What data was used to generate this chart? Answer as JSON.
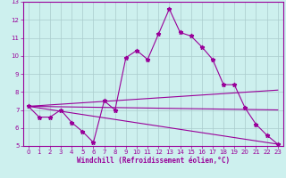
{
  "xlabel": "Windchill (Refroidissement éolien,°C)",
  "xlim": [
    -0.5,
    23.5
  ],
  "ylim": [
    5,
    13
  ],
  "xticks": [
    0,
    1,
    2,
    3,
    4,
    5,
    6,
    7,
    8,
    9,
    10,
    11,
    12,
    13,
    14,
    15,
    16,
    17,
    18,
    19,
    20,
    21,
    22,
    23
  ],
  "yticks": [
    5,
    6,
    7,
    8,
    9,
    10,
    11,
    12,
    13
  ],
  "bg_color": "#cdf0ee",
  "line_color": "#990099",
  "grid_color": "#aacccc",
  "lines": [
    {
      "x": [
        0,
        1,
        2,
        3,
        4,
        5,
        6,
        7,
        8,
        9,
        10,
        11,
        12,
        13,
        14,
        15,
        16,
        17,
        18,
        19,
        20,
        21,
        22,
        23
      ],
      "y": [
        7.2,
        6.6,
        6.6,
        7.0,
        6.3,
        5.8,
        5.2,
        7.5,
        7.0,
        9.9,
        10.3,
        9.8,
        11.2,
        12.6,
        11.3,
        11.1,
        10.5,
        9.8,
        8.4,
        8.4,
        7.1,
        6.2,
        5.6,
        5.1
      ],
      "has_markers": true
    },
    {
      "x": [
        0,
        23
      ],
      "y": [
        7.2,
        7.0
      ],
      "has_markers": false
    },
    {
      "x": [
        0,
        23
      ],
      "y": [
        7.2,
        8.1
      ],
      "has_markers": false
    },
    {
      "x": [
        0,
        23
      ],
      "y": [
        7.2,
        5.1
      ],
      "has_markers": false
    }
  ]
}
